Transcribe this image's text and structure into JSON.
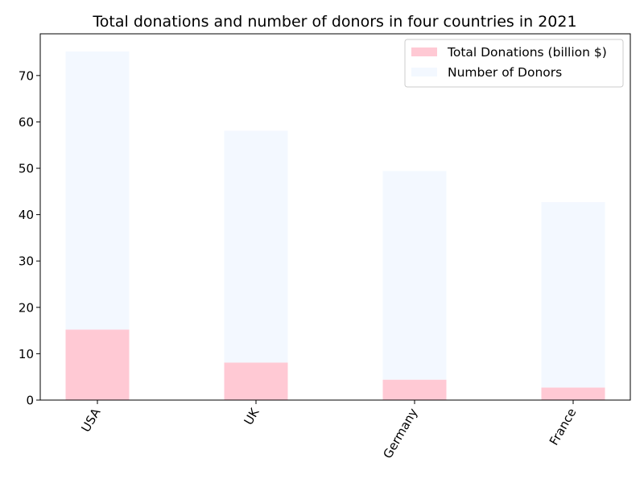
{
  "chart_data": {
    "type": "bar",
    "stacked": true,
    "title": "Total donations and number of donors in four countries in 2021",
    "xlabel": "",
    "ylabel": "",
    "categories": [
      "USA",
      "UK",
      "Germany",
      "France"
    ],
    "series": [
      {
        "name": "Total Donations (billion $)",
        "values": [
          15.2,
          8.1,
          4.4,
          2.7
        ],
        "color": "#ffc9d4"
      },
      {
        "name": "Number of Donors",
        "values": [
          60.0,
          50.0,
          45.0,
          40.0
        ],
        "color": "#f3f8ff"
      }
    ],
    "ylim": [
      0,
      79
    ],
    "yticks": [
      0,
      10,
      20,
      30,
      40,
      50,
      60,
      70
    ],
    "grid": false,
    "legend_position": "top-right",
    "xtick_rotation": 60
  }
}
